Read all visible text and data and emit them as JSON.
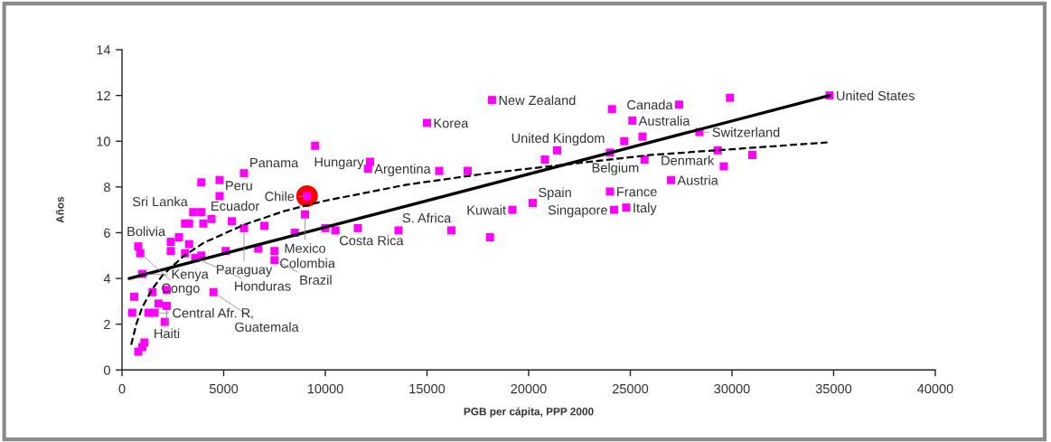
{
  "chart_data": {
    "type": "scatter",
    "xlabel": "PGB per cápita, PPP 2000",
    "ylabel": "Años",
    "xlim": [
      0,
      40000
    ],
    "xticks": [
      0,
      5000,
      10000,
      15000,
      20000,
      25000,
      30000,
      35000,
      40000
    ],
    "ylim": [
      0,
      14
    ],
    "yticks": [
      0,
      2,
      4,
      6,
      8,
      10,
      12,
      14
    ],
    "grid": false,
    "series": [
      {
        "type": "scatter",
        "color": "#ff0000",
        "marker": "circle",
        "x": [
          9100
        ],
        "values": [
          7.6
        ]
      },
      {
        "type": "scatter",
        "color": "#ff00ff",
        "marker": "square",
        "x": [
          500,
          600,
          800,
          800,
          900,
          1000,
          1000,
          1100,
          1300,
          1500,
          1600,
          1800,
          2100,
          2200,
          2200,
          2400,
          2400,
          2800,
          3100,
          3100,
          3300,
          3300,
          3500,
          3600,
          3900,
          3900,
          3900,
          4000,
          4400,
          4500,
          4800,
          4800,
          5100,
          5400,
          6000,
          6000,
          6700,
          7000,
          7500,
          7500,
          8500,
          9000,
          9100,
          9500,
          10000,
          10500,
          11600,
          12100,
          12200,
          13600,
          15000,
          15600,
          16200,
          17000,
          18100,
          18200,
          19200,
          20200,
          20800,
          21400,
          24000,
          24000,
          24100,
          24200,
          24700,
          24800,
          25100,
          25600,
          25700,
          27000,
          27400,
          28400,
          29300,
          29600,
          29900,
          31000,
          34800
        ],
        "values": [
          2.5,
          3.2,
          0.8,
          5.4,
          5.1,
          4.2,
          1.0,
          1.2,
          2.5,
          3.4,
          2.5,
          2.9,
          2.1,
          2.8,
          3.5,
          5.2,
          5.6,
          5.8,
          5.1,
          6.4,
          6.4,
          5.5,
          6.9,
          4.9,
          6.9,
          8.2,
          5.0,
          6.4,
          6.6,
          3.4,
          7.6,
          8.3,
          5.2,
          6.5,
          8.6,
          6.2,
          5.3,
          6.3,
          5.2,
          4.8,
          6.0,
          6.8,
          7.6,
          9.8,
          6.2,
          6.1,
          6.2,
          8.8,
          9.1,
          6.1,
          10.8,
          8.7,
          6.1,
          8.7,
          5.8,
          11.8,
          7.0,
          7.3,
          9.2,
          9.6,
          9.5,
          7.8,
          11.4,
          7.0,
          10.0,
          7.1,
          10.9,
          10.2,
          9.2,
          8.3,
          11.6,
          10.4,
          9.6,
          8.9,
          11.9,
          9.4,
          12.0
        ]
      },
      {
        "type": "line",
        "color": "#000000",
        "marker": "none",
        "line_style": "solid",
        "x": [
          350,
          34800
        ],
        "values": [
          4.0,
          12.0
        ]
      },
      {
        "type": "line",
        "color": "#000000",
        "marker": "none",
        "line_style": "dashed",
        "x": [
          450,
          700,
          1000,
          1500,
          2000,
          3000,
          4000,
          6000,
          8000,
          10000,
          14000,
          18000,
          22000,
          26000,
          30000,
          34700
        ],
        "values": [
          1.1,
          2.0,
          2.75,
          3.55,
          4.15,
          4.95,
          5.55,
          6.35,
          6.95,
          7.4,
          8.1,
          8.6,
          9.0,
          9.4,
          9.65,
          9.95
        ]
      }
    ],
    "annotations": [
      {
        "text": "United States",
        "x": 34800,
        "y": 12.0
      },
      {
        "text": "Canada",
        "x": 27400,
        "y": 11.6
      },
      {
        "text": "New Zealand",
        "x": 18200,
        "y": 11.8
      },
      {
        "text": "Korea",
        "x": 15000,
        "y": 10.8
      },
      {
        "text": "Australia",
        "x": 25100,
        "y": 10.9
      },
      {
        "text": "Switzerland",
        "x": 28400,
        "y": 10.4
      },
      {
        "text": "United Kingdom",
        "x": 24000,
        "y": 9.5
      },
      {
        "text": "Denmark",
        "x": 29300,
        "y": 9.6
      },
      {
        "text": "Belgium",
        "x": 25700,
        "y": 9.2
      },
      {
        "text": "Austria",
        "x": 27000,
        "y": 8.3
      },
      {
        "text": "France",
        "x": 24000,
        "y": 7.8
      },
      {
        "text": "Italy",
        "x": 24800,
        "y": 7.1
      },
      {
        "text": "Singapore",
        "x": 24200,
        "y": 7.0
      },
      {
        "text": "Spain",
        "x": 20200,
        "y": 7.3
      },
      {
        "text": "Kuwait",
        "x": 19200,
        "y": 7.0
      },
      {
        "text": "Hungary",
        "x": 12200,
        "y": 9.1
      },
      {
        "text": "Argentina",
        "x": 12100,
        "y": 8.8
      },
      {
        "text": "S. Africa",
        "x": 13600,
        "y": 6.1
      },
      {
        "text": "Costa Rica",
        "x": 10500,
        "y": 6.1
      },
      {
        "text": "Mexico",
        "x": 9000,
        "y": 6.8
      },
      {
        "text": "Chile",
        "x": 9100,
        "y": 7.6
      },
      {
        "text": "Panama",
        "x": 6000,
        "y": 8.6
      },
      {
        "text": "Peru",
        "x": 4800,
        "y": 7.6
      },
      {
        "text": "Sri Lanka",
        "x": 3500,
        "y": 6.9
      },
      {
        "text": "Ecuador",
        "x": 4000,
        "y": 6.4
      },
      {
        "text": "Paraguay",
        "x": 6000,
        "y": 6.2
      },
      {
        "text": "Bolivia",
        "x": 2400,
        "y": 5.6
      },
      {
        "text": "Colombia",
        "x": 7500,
        "y": 5.2
      },
      {
        "text": "Brazil",
        "x": 7500,
        "y": 4.8
      },
      {
        "text": "Honduras",
        "x": 3600,
        "y": 4.9
      },
      {
        "text": "Congo",
        "x": 900,
        "y": 5.1
      },
      {
        "text": "Kenya",
        "x": 1000,
        "y": 4.2
      },
      {
        "text": "Guatemala",
        "x": 4500,
        "y": 3.4
      },
      {
        "text": "Haiti",
        "x": 2200,
        "y": 2.8
      },
      {
        "text": "Central Afr. R.",
        "x": 1600,
        "y": 2.5
      }
    ]
  }
}
